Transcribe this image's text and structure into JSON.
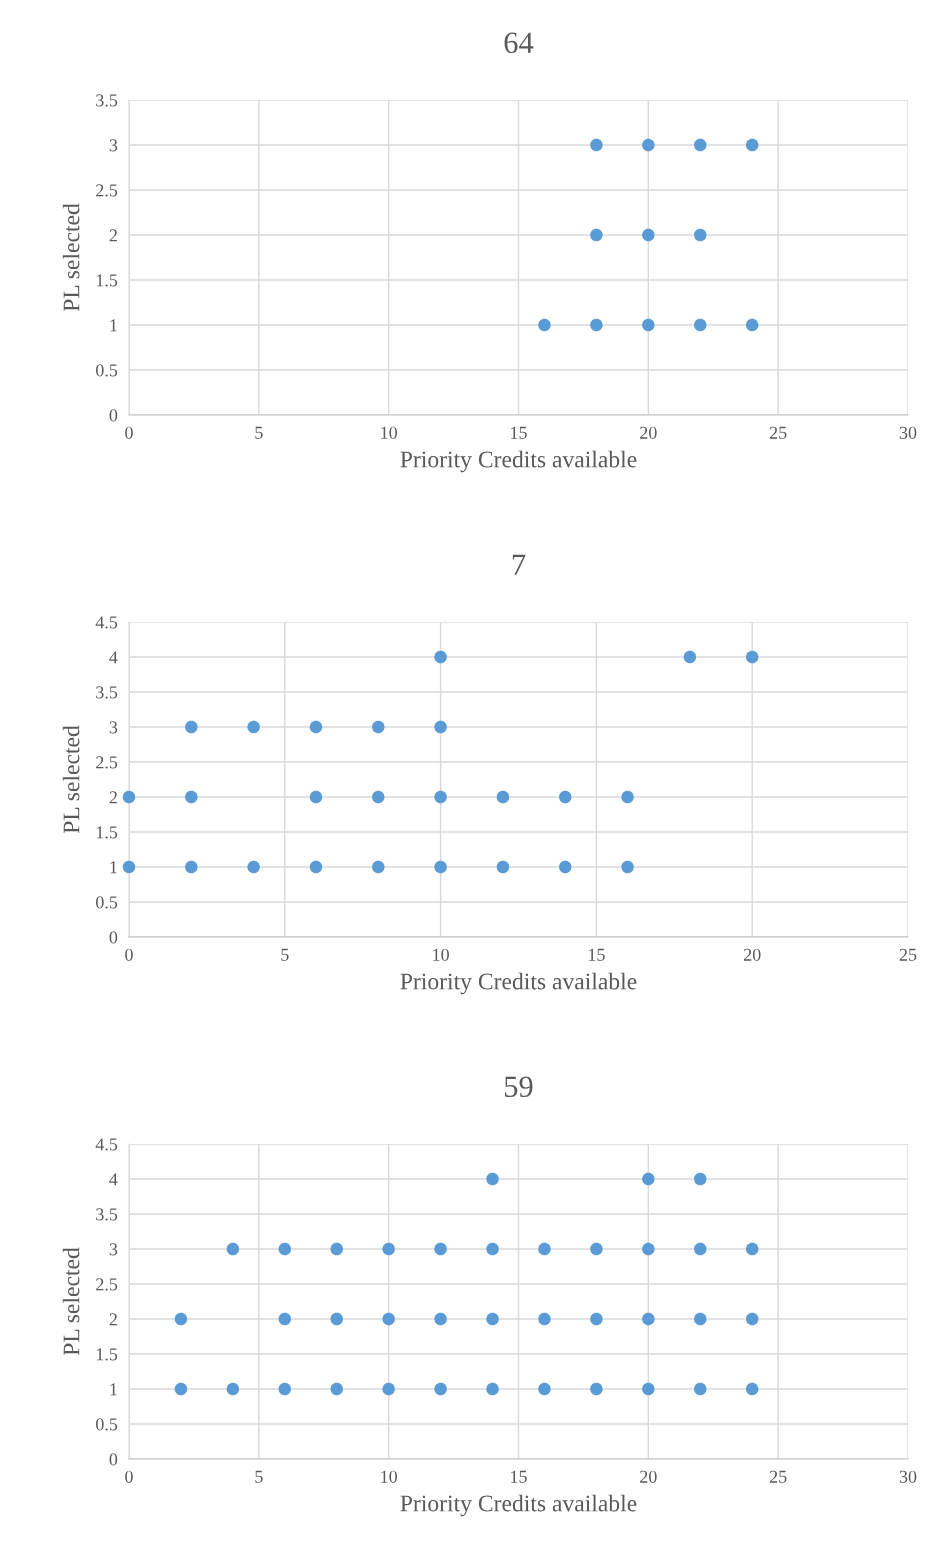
{
  "chart_data": [
    {
      "type": "scatter",
      "title": "64",
      "xlabel": "Priority Credits available",
      "ylabel": "PL selected",
      "xlim": [
        0,
        30
      ],
      "xticks": [
        0,
        5,
        10,
        15,
        20,
        25,
        30
      ],
      "ylim": [
        0,
        3.5
      ],
      "yticks": [
        0,
        0.5,
        1,
        1.5,
        2,
        2.5,
        3,
        3.5
      ],
      "grid": true,
      "marker": "circle",
      "series": [
        {
          "color": "#5b9bd5",
          "x": [
            18,
            20,
            22,
            24,
            18,
            20,
            22,
            16,
            18,
            20,
            22,
            24
          ],
          "values": [
            3,
            3,
            3,
            3,
            2,
            2,
            2,
            1,
            1,
            1,
            1,
            1
          ]
        }
      ]
    },
    {
      "type": "scatter",
      "title": "7",
      "xlabel": "Priority Credits available",
      "ylabel": "PL selected",
      "xlim": [
        0,
        25
      ],
      "xticks": [
        0,
        5,
        10,
        15,
        20,
        25
      ],
      "ylim": [
        0,
        4.5
      ],
      "yticks": [
        0,
        0.5,
        1,
        1.5,
        2,
        2.5,
        3,
        3.5,
        4,
        4.5
      ],
      "grid": true,
      "marker": "circle",
      "series": [
        {
          "color": "#5b9bd5",
          "x": [
            10,
            18,
            20,
            2,
            4,
            6,
            8,
            10,
            0,
            2,
            6,
            8,
            10,
            12,
            14,
            16,
            0,
            2,
            4,
            6,
            8,
            10,
            12,
            14,
            16
          ],
          "values": [
            4,
            4,
            4,
            3,
            3,
            3,
            3,
            3,
            2,
            2,
            2,
            2,
            2,
            2,
            2,
            2,
            1,
            1,
            1,
            1,
            1,
            1,
            1,
            1,
            1
          ]
        }
      ]
    },
    {
      "type": "scatter",
      "title": "59",
      "xlabel": "Priority Credits available",
      "ylabel": "PL selected",
      "xlim": [
        0,
        30
      ],
      "xticks": [
        0,
        5,
        10,
        15,
        20,
        25,
        30
      ],
      "ylim": [
        0,
        4.5
      ],
      "yticks": [
        0,
        0.5,
        1,
        1.5,
        2,
        2.5,
        3,
        3.5,
        4,
        4.5
      ],
      "grid": true,
      "marker": "circle",
      "series": [
        {
          "color": "#5b9bd5",
          "x": [
            14,
            20,
            22,
            4,
            6,
            8,
            10,
            12,
            14,
            16,
            18,
            20,
            22,
            24,
            2,
            6,
            8,
            10,
            12,
            14,
            16,
            18,
            20,
            22,
            24,
            2,
            4,
            6,
            8,
            10,
            12,
            14,
            16,
            18,
            20,
            22,
            24
          ],
          "values": [
            4,
            4,
            4,
            3,
            3,
            3,
            3,
            3,
            3,
            3,
            3,
            3,
            3,
            3,
            2,
            2,
            2,
            2,
            2,
            2,
            2,
            2,
            2,
            2,
            2,
            1,
            1,
            1,
            1,
            1,
            1,
            1,
            1,
            1,
            1,
            1,
            1
          ]
        }
      ]
    }
  ]
}
